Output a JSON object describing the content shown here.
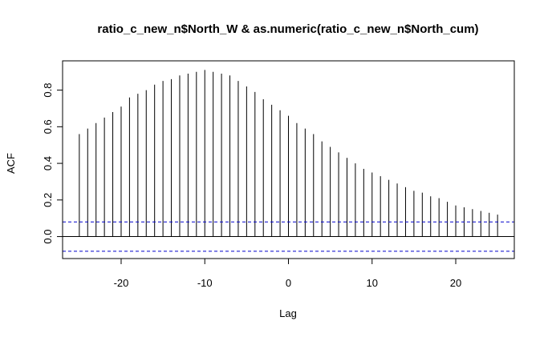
{
  "chart_data": {
    "type": "bar",
    "title": "ratio_c_new_n$North_W & as.numeric(ratio_c_new_n$North_cum)",
    "xlabel": "Lag",
    "ylabel": "ACF",
    "xlim": [
      -27,
      27
    ],
    "ylim": [
      -0.12,
      0.96
    ],
    "x_ticks": [
      -20,
      -10,
      0,
      10,
      20
    ],
    "x_tick_labels": [
      "-20",
      "-10",
      "0",
      "10",
      "20"
    ],
    "y_ticks": [
      0.0,
      0.2,
      0.4,
      0.6,
      0.8
    ],
    "y_tick_labels": [
      "0.0",
      "0.2",
      "0.4",
      "0.6",
      "0.8"
    ],
    "confidence_bound": 0.08,
    "grid": false,
    "line_color": "#000000",
    "bound_color": "#0000CC",
    "x": [
      -25,
      -24,
      -23,
      -22,
      -21,
      -20,
      -19,
      -18,
      -17,
      -16,
      -15,
      -14,
      -13,
      -12,
      -11,
      -10,
      -9,
      -8,
      -7,
      -6,
      -5,
      -4,
      -3,
      -2,
      -1,
      0,
      1,
      2,
      3,
      4,
      5,
      6,
      7,
      8,
      9,
      10,
      11,
      12,
      13,
      14,
      15,
      16,
      17,
      18,
      19,
      20,
      21,
      22,
      23,
      24,
      25
    ],
    "values": [
      0.56,
      0.59,
      0.62,
      0.65,
      0.68,
      0.71,
      0.76,
      0.78,
      0.8,
      0.83,
      0.85,
      0.86,
      0.88,
      0.89,
      0.9,
      0.91,
      0.9,
      0.89,
      0.88,
      0.85,
      0.82,
      0.79,
      0.75,
      0.72,
      0.69,
      0.66,
      0.62,
      0.59,
      0.56,
      0.52,
      0.49,
      0.46,
      0.43,
      0.4,
      0.37,
      0.35,
      0.33,
      0.31,
      0.29,
      0.27,
      0.25,
      0.24,
      0.22,
      0.21,
      0.19,
      0.17,
      0.16,
      0.15,
      0.14,
      0.13,
      0.12
    ]
  }
}
